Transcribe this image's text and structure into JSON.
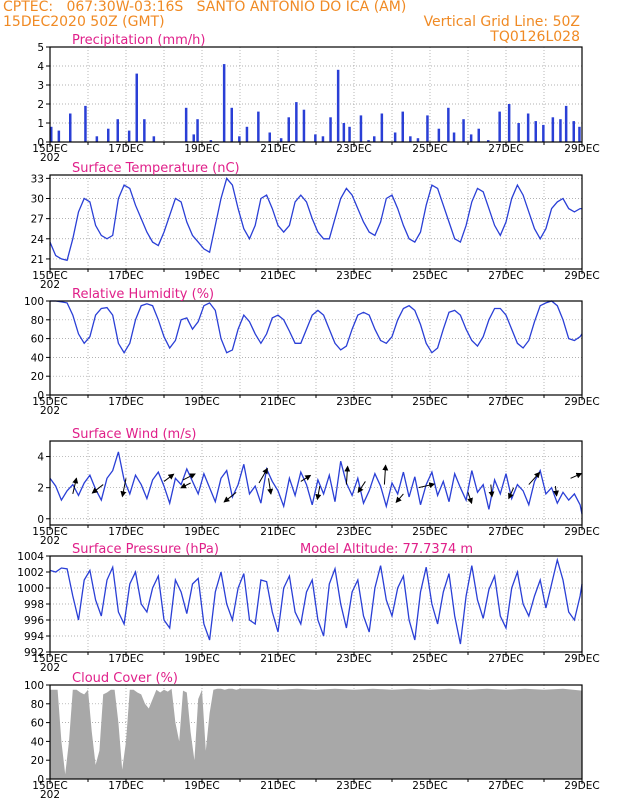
{
  "header": {
    "line1_left": "CPTEC:   067:30W-03:16S   SANTO ANTONIO DO ICA (AM)",
    "line2_left": "15DEC2020 50Z (GMT)",
    "line2_right": "Vertical Grid Line: 50Z",
    "line3_right": "TQ0126L028"
  },
  "x_ticks": [
    "15DEC",
    "17DEC",
    "19DEC",
    "21DEC",
    "23DEC",
    "25DEC",
    "27DEC",
    "29DEC"
  ],
  "x_tick_prefix": "202",
  "colors": {
    "line": "#2a3fd6",
    "bar": "#2a3fd6",
    "cloud": "#a8a8a8",
    "title": "#e0208a",
    "header": "#f08a24"
  },
  "chart_data": [
    {
      "id": "precip",
      "type": "bar",
      "title": "Precipitation  (mm/h)",
      "ylim": [
        0,
        5
      ],
      "yticks": [
        0,
        1,
        2,
        3,
        4,
        5
      ],
      "x_days": [
        0,
        0.2,
        0.5,
        0.9,
        1.2,
        1.5,
        1.75,
        2.05,
        2.25,
        2.45,
        2.7,
        3.55,
        3.75,
        3.85,
        4.2,
        4.55,
        4.75,
        4.95,
        5.15,
        5.45,
        5.75,
        6.05,
        6.25,
        6.45,
        6.65,
        6.95,
        7.15,
        7.35,
        7.55,
        7.7,
        7.85,
        8.15,
        8.35,
        8.5,
        8.7,
        9.05,
        9.25,
        9.45,
        9.65,
        9.9,
        10.2,
        10.45,
        10.6,
        10.85,
        11.05,
        11.25,
        11.5,
        11.8,
        12.05,
        12.3,
        12.55,
        12.75,
        12.95,
        13.2,
        13.4,
        13.55,
        13.75,
        13.9
      ],
      "values": [
        0.8,
        0.6,
        1.5,
        1.9,
        0.3,
        0.7,
        1.2,
        0.6,
        3.6,
        1.2,
        0.3,
        1.8,
        0.4,
        1.2,
        0.1,
        4.1,
        1.8,
        0.3,
        0.8,
        1.6,
        0.5,
        0.2,
        1.3,
        2.1,
        1.7,
        0.4,
        0.3,
        1.3,
        3.8,
        1.0,
        0.8,
        1.4,
        0.1,
        0.3,
        1.5,
        0.5,
        1.6,
        0.3,
        0.2,
        1.4,
        0.7,
        1.8,
        0.5,
        1.2,
        0.4,
        0.7,
        0.1,
        1.6,
        2.0,
        1.0,
        1.5,
        1.1,
        0.9,
        1.3,
        1.2,
        1.9,
        1.1,
        0.8
      ]
    },
    {
      "id": "temp",
      "type": "line",
      "title": "Surface Temperature (nC)",
      "ylim": [
        19.5,
        33.5
      ],
      "yticks": [
        21,
        24,
        27,
        30,
        33
      ],
      "x": [
        0,
        0.15,
        0.3,
        0.45,
        0.6,
        0.75,
        0.9,
        1.05,
        1.2,
        1.35,
        1.5,
        1.65,
        1.8,
        1.95,
        2.1,
        2.25,
        2.4,
        2.55,
        2.7,
        2.85,
        3.0,
        3.15,
        3.3,
        3.45,
        3.6,
        3.75,
        3.9,
        4.05,
        4.2,
        4.35,
        4.5,
        4.65,
        4.8,
        4.95,
        5.1,
        5.25,
        5.4,
        5.55,
        5.7,
        5.85,
        6.0,
        6.15,
        6.3,
        6.45,
        6.6,
        6.75,
        6.9,
        7.05,
        7.2,
        7.35,
        7.5,
        7.65,
        7.8,
        7.95,
        8.1,
        8.25,
        8.4,
        8.55,
        8.7,
        8.85,
        9.0,
        9.15,
        9.3,
        9.45,
        9.6,
        9.75,
        9.9,
        10.05,
        10.2,
        10.35,
        10.5,
        10.65,
        10.8,
        10.95,
        11.1,
        11.25,
        11.4,
        11.55,
        11.7,
        11.85,
        12.0,
        12.15,
        12.3,
        12.45,
        12.6,
        12.75,
        12.9,
        13.05,
        13.2,
        13.35,
        13.5,
        13.65,
        13.8,
        13.95,
        14.0
      ],
      "y": [
        23.5,
        21.5,
        21.0,
        20.8,
        24,
        28,
        30,
        29.5,
        26,
        24.5,
        24,
        24.5,
        30,
        32,
        31.5,
        29,
        27,
        25,
        23.5,
        23,
        25,
        27.5,
        30,
        29.5,
        26.5,
        24.5,
        23.5,
        22.5,
        22,
        26,
        30,
        33,
        32,
        28.5,
        25.5,
        24,
        26,
        30,
        30.5,
        28.5,
        26,
        25,
        26,
        29.5,
        30.5,
        29.5,
        27,
        25,
        24,
        24,
        27,
        30,
        31.5,
        30.5,
        28.5,
        26.5,
        25,
        24.5,
        26.5,
        30,
        30.5,
        28.5,
        26,
        24,
        23.5,
        25,
        29,
        32,
        31.5,
        29,
        26.5,
        24,
        23.5,
        26,
        29.5,
        31.5,
        31,
        28.5,
        26,
        24.5,
        26.5,
        30,
        32,
        30.5,
        28,
        25.5,
        24,
        25.5,
        28.5,
        29.5,
        30,
        28.5,
        28,
        28.5,
        28.5
      ]
    },
    {
      "id": "rh",
      "type": "line",
      "title": "Relative Humidity (%)",
      "ylim": [
        0,
        100
      ],
      "yticks": [
        0,
        20,
        40,
        60,
        80,
        100
      ],
      "x": [
        0,
        0.15,
        0.3,
        0.45,
        0.6,
        0.75,
        0.9,
        1.05,
        1.2,
        1.35,
        1.5,
        1.65,
        1.8,
        1.95,
        2.1,
        2.25,
        2.4,
        2.55,
        2.7,
        2.85,
        3.0,
        3.15,
        3.3,
        3.45,
        3.6,
        3.75,
        3.9,
        4.05,
        4.2,
        4.35,
        4.5,
        4.65,
        4.8,
        4.95,
        5.1,
        5.25,
        5.4,
        5.55,
        5.7,
        5.85,
        6.0,
        6.15,
        6.3,
        6.45,
        6.6,
        6.75,
        6.9,
        7.05,
        7.2,
        7.35,
        7.5,
        7.65,
        7.8,
        7.95,
        8.1,
        8.25,
        8.4,
        8.55,
        8.7,
        8.85,
        9.0,
        9.15,
        9.3,
        9.45,
        9.6,
        9.75,
        9.9,
        10.05,
        10.2,
        10.35,
        10.5,
        10.65,
        10.8,
        10.95,
        11.1,
        11.25,
        11.4,
        11.55,
        11.7,
        11.85,
        12.0,
        12.15,
        12.3,
        12.45,
        12.6,
        12.75,
        12.9,
        13.05,
        13.2,
        13.35,
        13.5,
        13.65,
        13.8,
        13.95,
        14.0
      ],
      "y": [
        100,
        100,
        99,
        98,
        85,
        65,
        55,
        62,
        85,
        92,
        93,
        85,
        55,
        45,
        55,
        80,
        95,
        97,
        95,
        80,
        62,
        50,
        58,
        80,
        82,
        70,
        78,
        95,
        98,
        90,
        60,
        45,
        48,
        70,
        85,
        78,
        65,
        55,
        65,
        82,
        85,
        80,
        68,
        55,
        55,
        70,
        85,
        90,
        85,
        70,
        55,
        48,
        52,
        70,
        85,
        88,
        85,
        70,
        58,
        55,
        62,
        80,
        92,
        95,
        90,
        75,
        55,
        45,
        50,
        70,
        88,
        90,
        85,
        70,
        58,
        52,
        62,
        80,
        92,
        92,
        85,
        70,
        55,
        50,
        58,
        78,
        95,
        98,
        100,
        95,
        80,
        60,
        58,
        62,
        65
      ]
    },
    {
      "id": "wind",
      "type": "line",
      "title": "Surface Wind (m/s)",
      "ylim": [
        -0.4,
        5.0
      ],
      "yticks": [
        0,
        2,
        4
      ],
      "x": [
        0,
        0.15,
        0.3,
        0.45,
        0.6,
        0.75,
        0.9,
        1.05,
        1.2,
        1.35,
        1.5,
        1.65,
        1.8,
        1.95,
        2.1,
        2.25,
        2.4,
        2.55,
        2.7,
        2.85,
        3.0,
        3.15,
        3.3,
        3.45,
        3.6,
        3.75,
        3.9,
        4.05,
        4.2,
        4.35,
        4.5,
        4.65,
        4.8,
        4.95,
        5.1,
        5.25,
        5.4,
        5.55,
        5.7,
        5.85,
        6.0,
        6.15,
        6.3,
        6.45,
        6.6,
        6.75,
        6.9,
        7.05,
        7.2,
        7.35,
        7.5,
        7.65,
        7.8,
        7.95,
        8.1,
        8.25,
        8.4,
        8.55,
        8.7,
        8.85,
        9.0,
        9.15,
        9.3,
        9.45,
        9.6,
        9.75,
        9.9,
        10.05,
        10.2,
        10.35,
        10.5,
        10.65,
        10.8,
        10.95,
        11.1,
        11.25,
        11.4,
        11.55,
        11.7,
        11.85,
        12.0,
        12.15,
        12.3,
        12.45,
        12.6,
        12.75,
        12.9,
        13.05,
        13.2,
        13.35,
        13.5,
        13.65,
        13.8,
        13.95,
        14.0
      ],
      "y": [
        2.6,
        2.1,
        1.2,
        1.8,
        2.2,
        1.5,
        2.3,
        2.8,
        1.9,
        1.2,
        2.6,
        3.1,
        4.3,
        2.5,
        1.6,
        2.8,
        2.2,
        1.3,
        2.5,
        3.0,
        2.1,
        1.0,
        2.6,
        2.2,
        3.2,
        2.4,
        1.6,
        2.9,
        2.0,
        1.1,
        2.6,
        3.1,
        1.4,
        2.2,
        3.5,
        1.6,
        2.1,
        1.0,
        3.2,
        2.4,
        1.8,
        0.8,
        2.6,
        1.5,
        3.0,
        2.2,
        0.9,
        2.5,
        1.6,
        2.8,
        1.1,
        3.7,
        2.3,
        1.5,
        2.6,
        1.0,
        1.8,
        2.9,
        2.1,
        0.8,
        2.3,
        1.6,
        3.0,
        1.4,
        2.7,
        0.9,
        2.2,
        3.0,
        1.5,
        2.4,
        1.1,
        2.9,
        2.0,
        1.2,
        3.1,
        1.7,
        2.2,
        0.6,
        2.5,
        1.6,
        2.9,
        1.3,
        2.2,
        1.8,
        0.9,
        2.4,
        3.1,
        1.6,
        2.0,
        1.0,
        1.7,
        1.2,
        1.6,
        0.9,
        0.3
      ],
      "arrows": [
        {
          "x": 0.6,
          "y": 1.6,
          "u": 0.3,
          "v": 1.3
        },
        {
          "x": 1.4,
          "y": 2.2,
          "u": -0.9,
          "v": -0.7
        },
        {
          "x": 2.0,
          "y": 2.6,
          "u": -0.3,
          "v": -1.5
        },
        {
          "x": 3.0,
          "y": 2.4,
          "u": 0.8,
          "v": 0.6
        },
        {
          "x": 3.5,
          "y": 2.5,
          "u": 1.0,
          "v": 0.5
        },
        {
          "x": 3.7,
          "y": 2.3,
          "u": -0.8,
          "v": -0.4
        },
        {
          "x": 4.9,
          "y": 1.7,
          "u": -1.0,
          "v": -0.8
        },
        {
          "x": 5.5,
          "y": 2.3,
          "u": 0.7,
          "v": 1.2
        },
        {
          "x": 5.75,
          "y": 2.6,
          "u": 0.2,
          "v": -1.3
        },
        {
          "x": 6.6,
          "y": 2.4,
          "u": 0.8,
          "v": 0.5
        },
        {
          "x": 7.1,
          "y": 2.1,
          "u": -0.2,
          "v": -1.1
        },
        {
          "x": 7.8,
          "y": 2.2,
          "u": 0.1,
          "v": 1.5
        },
        {
          "x": 8.3,
          "y": 2.4,
          "u": -0.6,
          "v": -0.9
        },
        {
          "x": 8.8,
          "y": 2.2,
          "u": 0.1,
          "v": 1.6
        },
        {
          "x": 9.3,
          "y": 1.6,
          "u": -0.6,
          "v": -0.7
        },
        {
          "x": 9.7,
          "y": 2.0,
          "u": 1.3,
          "v": 0.3
        },
        {
          "x": 11.0,
          "y": 1.7,
          "u": 0.3,
          "v": -0.9
        },
        {
          "x": 11.6,
          "y": 2.2,
          "u": 0.1,
          "v": -1.0
        },
        {
          "x": 12.6,
          "y": 2.2,
          "u": 0.9,
          "v": 1.0
        },
        {
          "x": 13.3,
          "y": 2.1,
          "u": 0.1,
          "v": -0.8
        },
        {
          "x": 13.7,
          "y": 2.6,
          "u": 0.9,
          "v": 0.4
        },
        {
          "x": 12.2,
          "y": 2.0,
          "u": -0.4,
          "v": -0.9
        }
      ]
    },
    {
      "id": "pressure",
      "type": "line",
      "title": "Surface Pressure (hPa)",
      "annotation": "Model Altitude: 77.7374 m",
      "ylim": [
        992,
        1004
      ],
      "yticks": [
        992,
        994,
        996,
        998,
        1000,
        1002,
        1004
      ],
      "x": [
        0,
        0.15,
        0.3,
        0.45,
        0.6,
        0.75,
        0.9,
        1.05,
        1.2,
        1.35,
        1.5,
        1.65,
        1.8,
        1.95,
        2.1,
        2.25,
        2.4,
        2.55,
        2.7,
        2.85,
        3.0,
        3.15,
        3.3,
        3.45,
        3.6,
        3.75,
        3.9,
        4.05,
        4.2,
        4.35,
        4.5,
        4.65,
        4.8,
        4.95,
        5.1,
        5.25,
        5.4,
        5.55,
        5.7,
        5.85,
        6.0,
        6.15,
        6.3,
        6.45,
        6.6,
        6.75,
        6.9,
        7.05,
        7.2,
        7.35,
        7.5,
        7.65,
        7.8,
        7.95,
        8.1,
        8.25,
        8.4,
        8.55,
        8.7,
        8.85,
        9.0,
        9.15,
        9.3,
        9.45,
        9.6,
        9.75,
        9.9,
        10.05,
        10.2,
        10.35,
        10.5,
        10.65,
        10.8,
        10.95,
        11.1,
        11.25,
        11.4,
        11.55,
        11.7,
        11.85,
        12.0,
        12.15,
        12.3,
        12.45,
        12.6,
        12.75,
        12.9,
        13.05,
        13.2,
        13.35,
        13.5,
        13.65,
        13.8,
        13.95,
        14.0
      ],
      "y": [
        1002.2,
        1002,
        1002.5,
        1002.4,
        999,
        996,
        1001,
        1002.2,
        998.5,
        996.5,
        1001,
        1002.6,
        997,
        995.5,
        1000.5,
        1002,
        998,
        997,
        1000,
        1001.5,
        996,
        995,
        1001,
        999.5,
        996.8,
        1000.5,
        1001.2,
        995.5,
        993.5,
        999.5,
        1002,
        998,
        996,
        1000,
        1001.8,
        996,
        995.5,
        1001,
        1000.8,
        997,
        994.5,
        1000,
        1001.5,
        997,
        995.5,
        999.5,
        1001,
        996,
        994,
        1000.5,
        1002.4,
        998,
        995,
        999.5,
        1001,
        996.5,
        994.5,
        1000,
        1002.8,
        998.5,
        996.5,
        1000,
        1001.5,
        996,
        993.5,
        999.5,
        1002.6,
        998,
        995.5,
        999.5,
        1001.8,
        996.5,
        993,
        999,
        1002.8,
        998.5,
        996.2,
        999.8,
        1001.5,
        996.5,
        995,
        1000,
        1002,
        998,
        996.5,
        999,
        1001,
        997.5,
        1000.5,
        1003.5,
        1001,
        997,
        996,
        999,
        1000.5
      ]
    },
    {
      "id": "cloud",
      "type": "area",
      "title": "Cloud Cover (%)",
      "ylim": [
        0,
        100
      ],
      "yticks": [
        0,
        20,
        40,
        60,
        80,
        100
      ],
      "x": [
        0,
        0.1,
        0.2,
        0.3,
        0.4,
        0.5,
        0.6,
        0.7,
        0.8,
        0.9,
        1.0,
        1.1,
        1.2,
        1.3,
        1.4,
        1.5,
        1.6,
        1.7,
        1.8,
        1.9,
        2.0,
        2.1,
        2.2,
        2.3,
        2.4,
        2.5,
        2.6,
        2.7,
        2.8,
        2.9,
        3.0,
        3.1,
        3.2,
        3.3,
        3.4,
        3.5,
        3.6,
        3.7,
        3.8,
        3.9,
        4.0,
        4.1,
        4.2,
        4.3,
        4.4,
        4.5,
        4.6,
        4.7,
        4.8,
        4.9,
        5.0,
        5.5,
        6.0,
        6.5,
        7.0,
        7.5,
        8.0,
        8.5,
        9.0,
        9.5,
        10.0,
        10.5,
        11.0,
        11.5,
        12.0,
        12.5,
        13.0,
        13.5,
        14.0
      ],
      "y": [
        95,
        95,
        95,
        40,
        5,
        40,
        95,
        95,
        92,
        90,
        95,
        50,
        15,
        30,
        90,
        92,
        95,
        95,
        60,
        10,
        40,
        95,
        95,
        92,
        90,
        80,
        75,
        85,
        95,
        92,
        95,
        93,
        96,
        60,
        40,
        94,
        92,
        50,
        20,
        85,
        95,
        30,
        70,
        95,
        96,
        96,
        95,
        96,
        96,
        95,
        96,
        96,
        95,
        96,
        95,
        96,
        95,
        96,
        95,
        96,
        95,
        96,
        95,
        96,
        95,
        96,
        95,
        96,
        94
      ]
    }
  ]
}
